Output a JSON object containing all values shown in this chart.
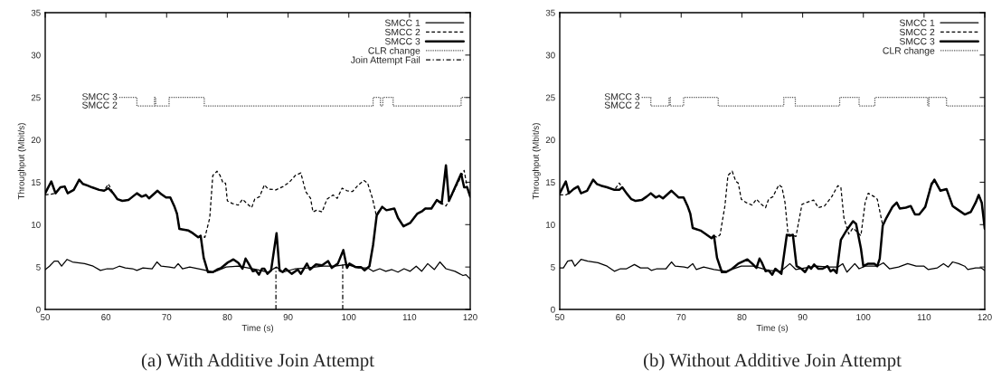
{
  "chart_data": [
    {
      "type": "line",
      "xlabel": "Time (s)",
      "ylabel": "Throughput (Mbit/s)",
      "xlim": [
        50,
        120
      ],
      "ylim": [
        0,
        35
      ],
      "xticks": [
        50,
        60,
        70,
        80,
        90,
        100,
        110,
        120
      ],
      "yticks": [
        0,
        5,
        10,
        15,
        20,
        25,
        30,
        35
      ],
      "grid": false,
      "legend": "top right",
      "annotations": [
        "(a) With Additive Join Attempt",
        "SMCC 3",
        "SMCC 2"
      ],
      "series": [
        {
          "name": "SMCC 1",
          "type": "line",
          "line_style": "solid",
          "color": "#000000",
          "x": [
            50.0,
            50.7,
            51.5,
            52.1,
            52.7,
            53.6,
            54.5,
            56.5,
            57.9,
            59.1,
            60.2,
            61.2,
            62.2,
            63.2,
            64.4,
            65.1,
            66.1,
            67.6,
            68.4,
            69.1,
            70.4,
            71.3,
            71.9,
            72.6,
            73.8,
            75.8,
            77.8,
            79.8,
            81.8,
            84.8,
            86.7,
            88.1,
            89.2,
            91.2,
            93.2,
            95.7,
            97.7,
            99.7,
            101.6,
            103.1,
            104.0,
            105.1,
            106.1,
            107.1,
            108.1,
            109.1,
            110.1,
            111.1,
            112.0,
            113.0,
            114.1,
            115.0,
            116.0,
            117.5,
            118.8,
            119.3,
            120.0
          ],
          "values": [
            4.7,
            5.1,
            5.7,
            5.7,
            5.1,
            5.9,
            5.6,
            5.4,
            5.1,
            4.6,
            4.8,
            4.8,
            5.1,
            4.9,
            4.8,
            4.6,
            4.9,
            4.8,
            5.6,
            5.1,
            5.0,
            4.9,
            5.4,
            4.8,
            5.0,
            4.7,
            4.4,
            5.0,
            5.1,
            4.7,
            4.4,
            5.0,
            4.4,
            4.8,
            4.9,
            5.1,
            5.1,
            5.3,
            4.9,
            4.9,
            4.5,
            4.8,
            4.5,
            4.7,
            4.4,
            4.8,
            4.5,
            5.1,
            4.5,
            5.4,
            4.7,
            5.6,
            4.8,
            4.5,
            4.0,
            4.1,
            3.6
          ]
        },
        {
          "name": "SMCC 2",
          "type": "line",
          "line_style": "dashed",
          "color": "#000000",
          "x": [
            50.0,
            51.0,
            51.7,
            52.5,
            53.2,
            53.7,
            54.7,
            55.6,
            56.2,
            57.0,
            57.7,
            58.9,
            59.7,
            60.4,
            61.2,
            61.9,
            62.7,
            63.7,
            64.4,
            65.1,
            65.9,
            66.6,
            67.1,
            68.5,
            69.1,
            69.9,
            70.6,
            71.3,
            71.7,
            72.1,
            73.6,
            74.3,
            75.2,
            75.6,
            76.3,
            77.1,
            77.6,
            78.3,
            78.8,
            79.3,
            79.7,
            80.0,
            80.8,
            81.8,
            82.5,
            83.2,
            84.0,
            84.5,
            85.3,
            86.1,
            86.7,
            88.0,
            89.2,
            90.2,
            91.2,
            92.1,
            92.9,
            93.7,
            94.1,
            94.7,
            95.6,
            96.4,
            97.4,
            98.1,
            98.9,
            99.7,
            100.6,
            101.6,
            102.5,
            103.1,
            103.9,
            104.5,
            105.5,
            106.2,
            107.5,
            108.1,
            109.0,
            110.1,
            111.3,
            112.1,
            112.6,
            113.6,
            114.5,
            115.3,
            116.0,
            116.5,
            119.0,
            119.5,
            120.0
          ],
          "values": [
            13.5,
            13.6,
            13.7,
            14.4,
            14.5,
            13.7,
            14.1,
            15.3,
            14.8,
            14.6,
            14.4,
            14.1,
            14.0,
            14.8,
            13.7,
            13.0,
            12.8,
            12.9,
            13.3,
            13.7,
            13.3,
            13.5,
            13.1,
            14.0,
            13.6,
            13.2,
            13.2,
            12.1,
            11.3,
            9.5,
            9.3,
            9.0,
            8.5,
            8.7,
            8.5,
            10.8,
            15.8,
            16.3,
            15.8,
            14.9,
            14.9,
            12.8,
            12.5,
            12.3,
            13.0,
            12.5,
            12.0,
            13.0,
            13.3,
            14.7,
            14.2,
            14.1,
            14.5,
            15.0,
            15.8,
            16.1,
            13.9,
            13.1,
            11.5,
            11.7,
            11.5,
            13.0,
            13.5,
            13.1,
            14.3,
            14.0,
            13.9,
            14.7,
            15.2,
            14.9,
            13.1,
            11.2,
            12.1,
            11.7,
            11.9,
            10.8,
            9.8,
            10.2,
            11.3,
            11.6,
            11.9,
            11.9,
            12.9,
            12.5,
            12.2,
            12.8,
            16.4,
            14.4,
            13.3
          ]
        },
        {
          "name": "SMCC 3",
          "type": "line",
          "line_style": "solid",
          "color": "#000000",
          "x": [
            50.0,
            51.0,
            51.7,
            52.5,
            53.2,
            53.7,
            54.7,
            55.6,
            56.2,
            57.0,
            57.7,
            58.9,
            59.7,
            60.4,
            61.2,
            61.9,
            62.7,
            63.7,
            64.4,
            65.1,
            65.9,
            66.6,
            67.1,
            68.5,
            69.1,
            69.9,
            70.6,
            71.3,
            71.7,
            72.1,
            73.6,
            74.3,
            75.2,
            75.6,
            76.1,
            76.8,
            77.6,
            78.3,
            79.0,
            80.0,
            81.0,
            81.8,
            82.5,
            83.0,
            83.5,
            84.2,
            84.7,
            85.2,
            85.7,
            86.1,
            86.6,
            87.2,
            88.1,
            88.6,
            89.1,
            89.6,
            90.6,
            91.6,
            92.1,
            93.1,
            93.6,
            94.6,
            95.6,
            96.6,
            97.2,
            98.2,
            99.1,
            99.7,
            100.1,
            101.1,
            102.0,
            102.6,
            103.4,
            104.0,
            104.6,
            105.5,
            106.2,
            107.5,
            108.1,
            109.0,
            110.1,
            111.3,
            112.1,
            112.6,
            113.6,
            114.5,
            115.3,
            116.0,
            116.5,
            118.5,
            119.0,
            119.5,
            120.0
          ],
          "values": [
            13.7,
            15.1,
            13.7,
            14.4,
            14.5,
            13.7,
            14.1,
            15.3,
            14.8,
            14.6,
            14.4,
            14.1,
            14.0,
            14.3,
            13.7,
            13.0,
            12.8,
            12.9,
            13.3,
            13.7,
            13.3,
            13.5,
            13.1,
            14.0,
            13.6,
            13.2,
            13.2,
            12.1,
            11.3,
            9.5,
            9.3,
            9.0,
            8.5,
            8.7,
            6.1,
            4.4,
            4.4,
            4.7,
            4.9,
            5.5,
            5.9,
            5.5,
            4.8,
            6.0,
            5.4,
            4.5,
            4.6,
            4.1,
            4.8,
            4.8,
            4.2,
            4.6,
            9.0,
            4.6,
            4.4,
            4.8,
            4.2,
            4.7,
            4.2,
            5.4,
            4.7,
            5.3,
            5.2,
            5.7,
            4.9,
            5.4,
            7.0,
            4.9,
            5.4,
            5.0,
            5.0,
            4.6,
            5.1,
            7.6,
            11.1,
            12.1,
            11.7,
            11.9,
            10.8,
            9.8,
            10.2,
            11.3,
            11.6,
            11.9,
            11.9,
            12.9,
            12.5,
            17.0,
            12.8,
            16.0,
            14.4,
            14.4,
            13.3
          ]
        },
        {
          "name": "CLR change",
          "type": "step",
          "line_style": "dotted",
          "color": "#555555",
          "x": [
            62.2,
            65.1,
            68.0,
            68.2,
            70.4,
            76.2,
            104.0,
            105.2,
            105.6,
            107.3,
            118.5,
            120.0
          ],
          "values": [
            25,
            24,
            25,
            24,
            25,
            24,
            25,
            24,
            25,
            24,
            25,
            25
          ]
        },
        {
          "name": "Join Attempt Fail",
          "type": "line",
          "line_style": "dashdot",
          "color": "#000000",
          "x": [
            88.0,
            88.0
          ],
          "values": [
            0,
            5.0
          ]
        },
        {
          "type": "line",
          "line_style": "dashdot",
          "color": "#000000",
          "x": [
            99.0,
            99.0
          ],
          "values": [
            0,
            5.3
          ]
        }
      ]
    },
    {
      "type": "line",
      "xlabel": "Time (s)",
      "ylabel": "Throughput (Mbit/s)",
      "xlim": [
        50,
        120
      ],
      "ylim": [
        0,
        35
      ],
      "xticks": [
        50,
        60,
        70,
        80,
        90,
        100,
        110,
        120
      ],
      "yticks": [
        0,
        5,
        10,
        15,
        20,
        25,
        30,
        35
      ],
      "grid": false,
      "legend": "top right",
      "annotations": [
        "(b) Without Additive Join Attempt",
        "SMCC 3",
        "SMCC 2"
      ],
      "series": [
        {
          "name": "SMCC 1",
          "type": "line",
          "line_style": "solid",
          "color": "#000000",
          "x": [
            50.0,
            50.6,
            51.3,
            52.0,
            52.5,
            53.5,
            54.6,
            56.3,
            57.8,
            59.0,
            60.0,
            61.0,
            62.3,
            63.3,
            64.5,
            65.1,
            66.0,
            67.5,
            68.4,
            69.0,
            70.5,
            71.1,
            71.9,
            72.5,
            73.7,
            75.4,
            77.4,
            79.9,
            81.9,
            84.4,
            86.4,
            87.9,
            88.9,
            90.4,
            92.3,
            94.3,
            95.8,
            96.6,
            97.3,
            98.6,
            99.3,
            100.3,
            102.3,
            103.3,
            104.3,
            105.8,
            107.3,
            108.7,
            110.0,
            110.7,
            112.2,
            113.2,
            114.0,
            114.7,
            115.7,
            116.7,
            117.2,
            118.5,
            119.4,
            120.0
          ],
          "values": [
            4.9,
            4.9,
            5.7,
            5.8,
            5.1,
            5.9,
            5.7,
            5.5,
            5.1,
            4.5,
            4.8,
            4.8,
            5.3,
            4.9,
            4.9,
            4.6,
            4.8,
            4.8,
            5.6,
            5.1,
            5.0,
            4.9,
            5.4,
            4.7,
            5.0,
            4.7,
            4.5,
            5.1,
            5.1,
            4.6,
            4.5,
            5.4,
            4.7,
            4.9,
            5.1,
            5.0,
            5.0,
            5.4,
            4.4,
            5.4,
            4.8,
            5.1,
            5.1,
            5.5,
            4.8,
            5.0,
            5.4,
            5.1,
            5.1,
            4.7,
            4.9,
            5.4,
            5.0,
            5.6,
            5.4,
            5.1,
            4.7,
            4.9,
            4.9,
            4.6
          ]
        },
        {
          "name": "SMCC 2",
          "type": "line",
          "line_style": "dashed",
          "color": "#000000",
          "x": [
            50.0,
            51.0,
            51.5,
            52.3,
            53.0,
            53.5,
            54.5,
            55.5,
            56.1,
            56.8,
            57.8,
            59.0,
            59.8,
            60.3,
            61.0,
            61.8,
            62.5,
            63.5,
            64.3,
            65.0,
            65.8,
            66.4,
            67.0,
            68.4,
            69.0,
            69.6,
            70.4,
            71.1,
            71.5,
            71.9,
            73.2,
            74.0,
            75.0,
            75.4,
            75.9,
            76.4,
            77.2,
            77.7,
            78.4,
            79.0,
            79.4,
            79.9,
            80.7,
            81.7,
            82.4,
            83.2,
            83.9,
            84.4,
            85.1,
            86.1,
            86.6,
            87.1,
            87.6,
            88.9,
            89.9,
            90.6,
            91.8,
            92.6,
            93.6,
            94.8,
            95.8,
            96.3,
            96.8,
            97.6,
            98.3,
            99.6,
            100.3,
            100.8,
            101.8,
            102.3,
            103.2,
            103.8,
            104.8,
            105.5,
            106.0,
            107.0,
            107.8,
            108.5,
            109.2,
            110.2,
            111.2,
            111.7,
            112.7,
            113.7,
            114.7,
            115.7,
            116.7,
            117.7,
            118.5,
            119.0,
            119.5,
            120.0
          ],
          "values": [
            13.5,
            13.5,
            13.7,
            14.2,
            14.5,
            13.7,
            14.0,
            15.3,
            14.8,
            14.6,
            14.4,
            14.1,
            14.9,
            14.4,
            13.7,
            13.0,
            12.8,
            12.9,
            13.3,
            13.7,
            13.2,
            13.4,
            13.1,
            14.0,
            13.6,
            13.2,
            13.2,
            12.1,
            11.3,
            9.6,
            9.3,
            8.9,
            8.4,
            8.7,
            8.5,
            8.8,
            12.2,
            15.8,
            16.3,
            15.1,
            14.9,
            13.0,
            12.6,
            12.3,
            13.0,
            12.4,
            12.0,
            13.0,
            13.3,
            14.7,
            14.4,
            12.6,
            8.9,
            8.6,
            12.4,
            12.6,
            12.9,
            12.0,
            12.2,
            13.3,
            14.6,
            14.4,
            10.8,
            8.9,
            9.6,
            8.7,
            12.6,
            13.7,
            13.3,
            13.0,
            9.9,
            10.8,
            12.1,
            12.6,
            11.9,
            12.0,
            12.2,
            11.2,
            11.2,
            12.1,
            14.9,
            15.3,
            14.0,
            14.2,
            12.2,
            11.7,
            11.2,
            11.5,
            12.6,
            13.5,
            12.6,
            9.5
          ]
        },
        {
          "name": "SMCC 3",
          "type": "line",
          "line_style": "solid",
          "color": "#000000",
          "x": [
            50.0,
            51.0,
            51.5,
            52.3,
            53.0,
            53.5,
            54.5,
            55.5,
            56.1,
            56.8,
            57.8,
            59.0,
            59.8,
            60.3,
            61.0,
            61.8,
            62.5,
            63.5,
            64.3,
            65.0,
            65.8,
            66.4,
            67.0,
            68.4,
            69.0,
            69.6,
            70.4,
            71.1,
            71.5,
            71.9,
            73.2,
            74.0,
            75.0,
            75.4,
            75.9,
            76.7,
            77.4,
            78.4,
            79.4,
            80.9,
            81.7,
            82.4,
            82.9,
            83.3,
            83.9,
            84.4,
            85.0,
            85.5,
            86.0,
            86.5,
            87.4,
            87.9,
            88.4,
            89.0,
            89.8,
            90.4,
            91.0,
            91.4,
            91.9,
            92.6,
            93.3,
            94.1,
            94.6,
            95.1,
            95.6,
            96.3,
            97.3,
            98.3,
            98.8,
            99.6,
            100.0,
            100.8,
            101.8,
            102.3,
            102.7,
            103.2,
            103.8,
            104.8,
            105.5,
            106.0,
            107.0,
            107.8,
            108.5,
            109.2,
            110.2,
            111.2,
            111.7,
            112.7,
            113.7,
            114.7,
            115.7,
            116.7,
            117.7,
            118.5,
            119.0,
            119.5,
            120.0
          ],
          "values": [
            13.7,
            15.1,
            13.7,
            14.2,
            14.5,
            13.7,
            14.0,
            15.3,
            14.8,
            14.6,
            14.4,
            14.1,
            14.1,
            14.4,
            13.7,
            13.0,
            12.8,
            12.9,
            13.3,
            13.7,
            13.2,
            13.4,
            13.1,
            14.0,
            13.6,
            13.2,
            13.2,
            12.1,
            11.3,
            9.6,
            9.3,
            8.9,
            8.4,
            8.7,
            6.1,
            4.4,
            4.4,
            4.8,
            5.4,
            5.9,
            5.4,
            4.9,
            6.0,
            5.5,
            4.5,
            4.6,
            4.1,
            4.8,
            4.5,
            4.2,
            8.8,
            8.7,
            8.8,
            5.1,
            4.8,
            4.4,
            5.1,
            4.8,
            5.3,
            4.8,
            4.8,
            5.1,
            4.5,
            4.7,
            4.3,
            8.2,
            9.4,
            10.4,
            10.1,
            7.2,
            5.1,
            5.4,
            5.4,
            5.1,
            6.0,
            9.9,
            10.8,
            12.1,
            12.6,
            11.9,
            12.0,
            12.2,
            11.2,
            11.2,
            12.1,
            14.7,
            15.3,
            14.0,
            14.2,
            12.2,
            11.7,
            11.2,
            11.5,
            12.6,
            13.5,
            12.6,
            9.5
          ]
        },
        {
          "name": "CLR change",
          "type": "step",
          "line_style": "dotted",
          "color": "#555555",
          "x": [
            63.5,
            65.0,
            68.0,
            68.2,
            70.4,
            76.1,
            86.9,
            88.8,
            96.1,
            99.3,
            101.9,
            110.6,
            110.8,
            113.7,
            120.0
          ],
          "values": [
            25,
            24,
            25,
            24,
            25,
            24,
            25,
            24,
            25,
            24,
            25,
            24,
            25,
            24,
            24
          ]
        }
      ]
    }
  ]
}
